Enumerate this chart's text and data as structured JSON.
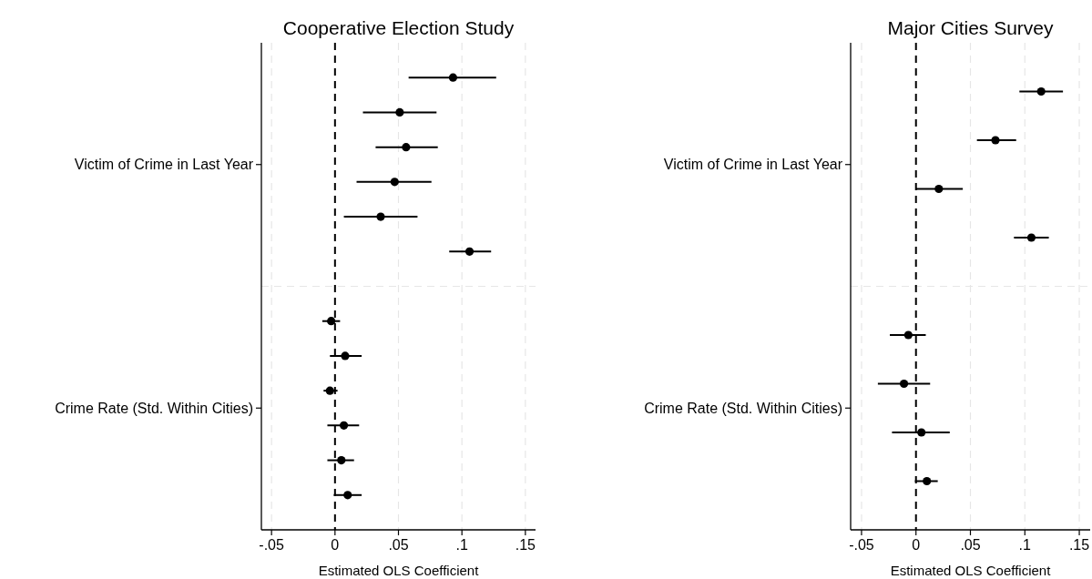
{
  "chart_data": [
    {
      "type": "scatter",
      "orientation": "horizontal",
      "title": "Cooperative Election Study",
      "xlabel": "Estimated OLS Coefficient",
      "xlim": [
        -0.058,
        0.158
      ],
      "xticks": [
        {
          "value": -0.05,
          "label": "-.05"
        },
        0,
        {
          "value": 0.05,
          "label": ".05"
        },
        {
          "value": 0.1,
          "label": ".1"
        },
        {
          "value": 0.15,
          "label": ".15"
        }
      ],
      "categories": [
        "Victim of Crime in Last Year",
        "Crime Rate (Std. Within Cities)"
      ],
      "grid": "x",
      "marker": "circle",
      "ref_lines": [
        {
          "axis": "x",
          "value": 0,
          "color": "#000000",
          "line_style": "dashed"
        }
      ],
      "series": [
        {
          "color": "#000000",
          "values": [
            0.093,
            -0.003
          ],
          "errors": [
            [
              0.058,
              0.127
            ],
            [
              -0.01,
              0.004
            ]
          ]
        },
        {
          "color": "#000000",
          "values": [
            0.051,
            0.008
          ],
          "errors": [
            [
              0.022,
              0.08
            ],
            [
              -0.004,
              0.021
            ]
          ]
        },
        {
          "color": "#000000",
          "values": [
            0.056,
            -0.004
          ],
          "errors": [
            [
              0.032,
              0.081
            ],
            [
              -0.009,
              0.002
            ]
          ]
        },
        {
          "color": "#000000",
          "values": [
            0.047,
            0.007
          ],
          "errors": [
            [
              0.017,
              0.076
            ],
            [
              -0.006,
              0.019
            ]
          ]
        },
        {
          "color": "#000000",
          "values": [
            0.036,
            0.005
          ],
          "errors": [
            [
              0.007,
              0.065
            ],
            [
              -0.006,
              0.015
            ]
          ]
        },
        {
          "color": "#000000",
          "values": [
            0.106,
            0.01
          ],
          "errors": [
            [
              0.09,
              0.123
            ],
            [
              -0.001,
              0.021
            ]
          ]
        }
      ]
    },
    {
      "type": "scatter",
      "orientation": "horizontal",
      "title": "Major Cities Survey",
      "xlabel": "Estimated OLS Coefficient",
      "xlim": [
        -0.06,
        0.16
      ],
      "xticks": [
        {
          "value": -0.05,
          "label": "-.05"
        },
        0,
        {
          "value": 0.05,
          "label": ".05"
        },
        {
          "value": 0.1,
          "label": ".1"
        },
        {
          "value": 0.15,
          "label": ".15"
        }
      ],
      "categories": [
        "Victim of Crime in Last Year",
        "Crime Rate (Std. Within Cities)"
      ],
      "grid": "x",
      "marker": "circle",
      "ref_lines": [
        {
          "axis": "x",
          "value": 0,
          "color": "#000000",
          "line_style": "dashed"
        }
      ],
      "series": [
        {
          "color": "#000000",
          "values": [
            0.115,
            -0.007
          ],
          "errors": [
            [
              0.095,
              0.135
            ],
            [
              -0.024,
              0.009
            ]
          ]
        },
        {
          "color": "#000000",
          "values": [
            0.073,
            -0.011
          ],
          "errors": [
            [
              0.056,
              0.092
            ],
            [
              -0.035,
              0.013
            ]
          ]
        },
        {
          "color": "#000000",
          "values": [
            0.021,
            0.005
          ],
          "errors": [
            [
              0,
              0.043
            ],
            [
              -0.022,
              0.031
            ]
          ]
        },
        {
          "color": "#000000",
          "values": [
            0.106,
            0.01
          ],
          "errors": [
            [
              0.09,
              0.122
            ],
            [
              -0.001,
              0.02
            ]
          ]
        }
      ]
    }
  ]
}
